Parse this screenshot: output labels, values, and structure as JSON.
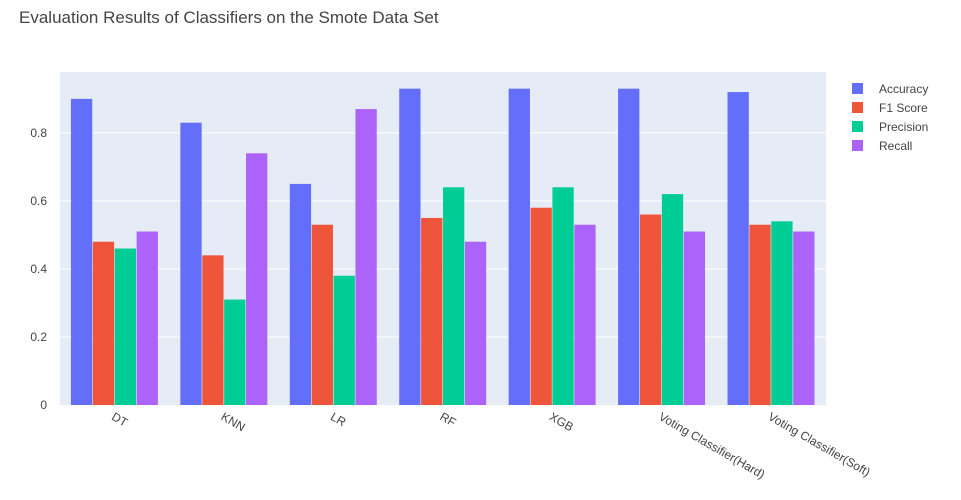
{
  "chart_data": {
    "type": "bar",
    "title": "Evaluation Results of Classifiers on the Smote Data Set",
    "categories": [
      "DT",
      "KNN",
      "LR",
      "RF",
      "XGB",
      "Voting Classifier(Hard)",
      "Voting Classifier(Soft)"
    ],
    "series": [
      {
        "name": "Accuracy",
        "color": "#636efa",
        "values": [
          0.9,
          0.83,
          0.65,
          0.93,
          0.93,
          0.93,
          0.92
        ]
      },
      {
        "name": "F1 Score",
        "color": "#ef553b",
        "values": [
          0.48,
          0.44,
          0.53,
          0.55,
          0.58,
          0.56,
          0.53
        ]
      },
      {
        "name": "Precision",
        "color": "#00cc96",
        "values": [
          0.46,
          0.31,
          0.38,
          0.64,
          0.64,
          0.62,
          0.54
        ]
      },
      {
        "name": "Recall",
        "color": "#ab63fa",
        "values": [
          0.51,
          0.74,
          0.87,
          0.48,
          0.53,
          0.51,
          0.51
        ]
      }
    ],
    "yticks": [
      0,
      0.2,
      0.4,
      0.6,
      0.8
    ],
    "ytick_labels": [
      "0",
      "0.2",
      "0.4",
      "0.6",
      "0.8"
    ],
    "ylim": [
      0,
      0.979
    ],
    "grid": true,
    "legend_position": "top-right",
    "plot_background": "#e5ecf6"
  }
}
